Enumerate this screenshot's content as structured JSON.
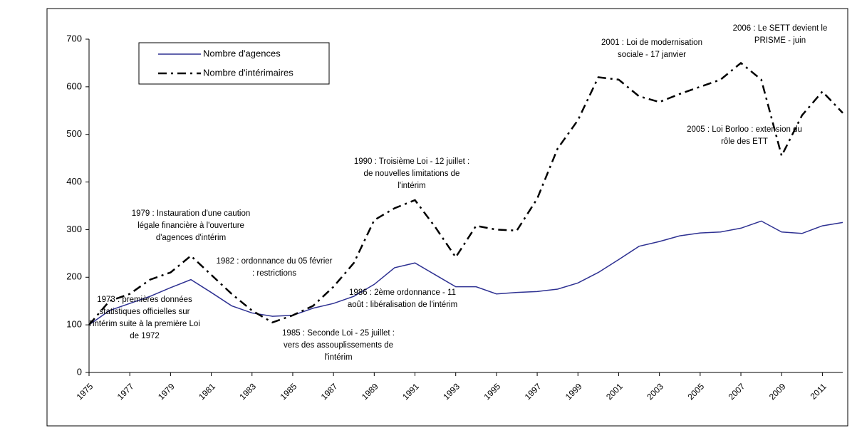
{
  "chart_data": {
    "type": "line",
    "x": [
      1975,
      1976,
      1977,
      1978,
      1979,
      1980,
      1981,
      1982,
      1983,
      1984,
      1985,
      1986,
      1987,
      1988,
      1989,
      1990,
      1991,
      1992,
      1993,
      1994,
      1995,
      1996,
      1997,
      1998,
      1999,
      2000,
      2001,
      2002,
      2003,
      2004,
      2005,
      2006,
      2007,
      2008,
      2009,
      2010,
      2011,
      2012
    ],
    "series": [
      {
        "name": "Nombre d'agences",
        "color": "#2e3192",
        "linestyle": "solid",
        "values": [
          100,
          130,
          145,
          160,
          178,
          195,
          168,
          140,
          125,
          118,
          120,
          135,
          145,
          160,
          185,
          220,
          230,
          205,
          180,
          180,
          165,
          168,
          170,
          175,
          188,
          210,
          237,
          265,
          275,
          287,
          293,
          295,
          303,
          318,
          295,
          292,
          308,
          315
        ]
      },
      {
        "name": "Nombre d'intérimaires",
        "color": "#000000",
        "linestyle": "dash-dot",
        "values": [
          100,
          150,
          165,
          195,
          210,
          245,
          205,
          165,
          130,
          105,
          120,
          140,
          180,
          230,
          320,
          345,
          362,
          305,
          242,
          308,
          300,
          298,
          365,
          470,
          530,
          620,
          615,
          580,
          568,
          585,
          600,
          615,
          650,
          615,
          455,
          540,
          590,
          545
        ]
      }
    ],
    "xlim": [
      1975,
      2012
    ],
    "xticks": [
      1975,
      1977,
      1979,
      1981,
      1983,
      1985,
      1987,
      1989,
      1991,
      1993,
      1995,
      1997,
      1999,
      2001,
      2003,
      2005,
      2007,
      2009,
      2011
    ],
    "ylim": [
      0,
      700
    ],
    "yticks": [
      0,
      100,
      200,
      300,
      400,
      500,
      600,
      700
    ],
    "legend": "top-left",
    "annotations": [
      [
        "1973 : premières données",
        "statistiques officielles sur",
        "l'intérim suite à la première Loi",
        "de 1972"
      ],
      [
        "1979 : Instauration d'une caution",
        "légale financière à l'ouverture",
        "d'agences d'intérim"
      ],
      [
        "1982 : ordonnance du 05 février",
        ": restrictions"
      ],
      [
        "1985 : Seconde Loi - 25 juillet :",
        "vers des assouplissements de",
        "l'intérim"
      ],
      [
        "1986 : 2ème ordonnance - 11",
        "août : libéralisation de l'intérim"
      ],
      [
        "1990 : Troisième Loi - 12 juillet :",
        "de nouvelles limitations de",
        "l'intérim"
      ],
      [
        "2001 : Loi de modernisation",
        "sociale - 17 janvier"
      ],
      [
        "2006 : Le SETT devient le",
        "PRISME - juin"
      ],
      [
        "2005 : Loi Borloo : extension du",
        "rôle des ETT"
      ]
    ]
  }
}
